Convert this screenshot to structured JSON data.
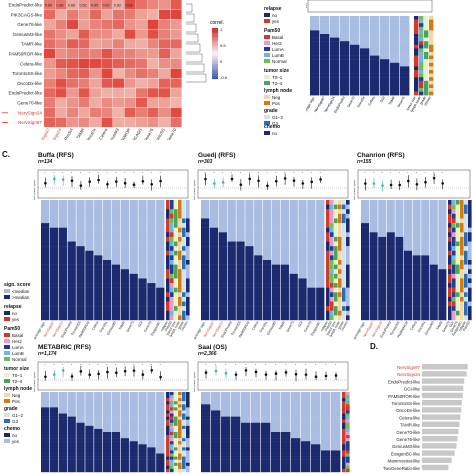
{
  "panel_letters": {
    "c": "C.",
    "d": "D."
  },
  "colors": {
    "navy": "#1b2a6e",
    "light_blue": "#7d98cc",
    "pale_blue": "#a9bde2",
    "red": "#cf3a2a",
    "teal": "#3fb6a8",
    "gray_bar": "#c8c8c8",
    "basal": "#d7352b",
    "her2": "#e89bc8",
    "luma": "#1f3c99",
    "lumb": "#6fb5e6",
    "normal": "#6bbf59",
    "t1": "#e7f2c9",
    "t2": "#4aa35b",
    "neg": "#f3d7a8",
    "pos": "#d17b12",
    "g12": "#cfe3f2",
    "g3": "#2a6fb4"
  },
  "heatmap_panel": {
    "rows": [
      "EndoPredict-like",
      "PIK3CAGS-like",
      "Gene76-like",
      "GeniusM3-like",
      "TAMR-like",
      "PAM50ROR-like",
      "Celera-like",
      "TorontoSS-like",
      "OncoDx-like",
      "EndoPredict-like",
      "Gene70-like",
      "NervSign24",
      "NervSign97"
    ],
    "cells_top": [
      "0.80",
      "0.80",
      "0.66",
      "0.63",
      "0.65",
      "0.63",
      "0.62",
      "0.63"
    ],
    "colorbar_title": "correl.",
    "colorbar_ticks": [
      "1",
      "0.5",
      "0",
      "-0.5"
    ],
    "column_labels": [
      "NervSign97",
      "NervSign24",
      "EndoPredict",
      "TAMR",
      "OncoDx",
      "Celera",
      "GeniusM3",
      "PAM50ROR",
      "PIK3CAGS",
      "Gene76",
      "TorontoSS",
      "Gene70"
    ]
  },
  "top_right": {
    "legend": {
      "relapse": {
        "title": "relapse",
        "items": [
          "no",
          "yes"
        ]
      },
      "pam50": {
        "title": "Pam50",
        "items": [
          "Basal",
          "Her2",
          "LumA",
          "LumB",
          "Normal"
        ]
      },
      "tumor_size": {
        "title": "tumor size",
        "items": [
          "T0–1",
          "T2–4"
        ]
      },
      "lymph_node": {
        "title": "lymph node",
        "items": [
          "Neg",
          "Pos"
        ]
      },
      "grade": {
        "title": "grade",
        "items": [
          "G1–2",
          "G3"
        ]
      },
      "chemo": {
        "title": "chemo",
        "items": [
          "no",
          "yes"
        ]
      }
    },
    "axis_label": "HR",
    "col_labels": [
      "average sign.",
      "NervSign97",
      "NervSign24",
      "EndoPredict",
      "Gene70",
      "OncoDx",
      "Celera",
      "GGI",
      "TAMR",
      "Gene76",
      "tumor size",
      "lymph node",
      "grade",
      "chemo"
    ]
  },
  "panels": [
    {
      "key": "buffa",
      "title": "Buffa (RFS)",
      "n": "n=134"
    },
    {
      "key": "guedj",
      "title": "Guedj (RFS)",
      "n": "n=303"
    },
    {
      "key": "chanrion",
      "title": "Chanrion (RFS)",
      "n": "n=155"
    },
    {
      "key": "metabric",
      "title": "METABRIC (RFS)",
      "n": "n=1,174"
    },
    {
      "key": "saal",
      "title": "Saal (OS)",
      "n": "n=2,366"
    }
  ],
  "hr_axis_label": "HR (med. split)",
  "c_col_labels": [
    "average sign.",
    "NervSign97",
    "NervSign24",
    "EndoPredict",
    "TorontoSS",
    "PAM50ROR",
    "Celera",
    "OncoDx",
    "GeniusM3",
    "TAMR",
    "Gene70",
    "GGI",
    "Gene76",
    "ExagenBC",
    "relapse",
    "Pam50",
    "tumor size",
    "lymph node",
    "grade",
    "chemo"
  ],
  "c_legend": {
    "sign_score": {
      "title": "sign. score",
      "items": [
        "<median",
        ">median"
      ]
    },
    "relapse": {
      "title": "relapse",
      "items": [
        "no",
        "yes"
      ]
    },
    "pam50": {
      "title": "Pam50",
      "items": [
        "Basal",
        "Her2",
        "LumA",
        "LumB",
        "Normal"
      ]
    },
    "tumor_size": {
      "title": "tumor size",
      "items": [
        "T0–1",
        "T2–4"
      ]
    },
    "lymph_node": {
      "title": "lymph node",
      "items": [
        "Neg",
        "Pos"
      ]
    },
    "grade": {
      "title": "grade",
      "items": [
        "G1–2",
        "G3"
      ]
    },
    "chemo": {
      "title": "chemo",
      "items": [
        "no",
        "yes"
      ]
    }
  },
  "panel_d": {
    "labels": [
      "NervSign97",
      "NervSign24",
      "EndoPredict-like",
      "GGI-like",
      "PAM50ROR-like",
      "TorontoSS-like",
      "OncoDx-like",
      "Celera-like",
      "TAMR-like",
      "Gene70-like",
      "Gene76-like",
      "GeniusM3-like",
      "ExagenBC-like",
      "Mammostrat-like",
      "TwoGeneRatio-like"
    ],
    "highlight": [
      "NervSign97",
      "NervSign24"
    ],
    "chart_data": {
      "type": "bar",
      "orientation": "horizontal",
      "categories": [
        "NervSign97",
        "NervSign24",
        "EndoPredict-like",
        "GGI-like",
        "PAM50ROR-like",
        "TorontoSS-like",
        "OncoDx-like",
        "Celera-like",
        "TAMR-like",
        "Gene70-like",
        "Gene76-like",
        "GeniusM3-like",
        "ExagenBC-like",
        "Mammostrat-like",
        "TwoGeneRatio-like"
      ],
      "values": [
        0.95,
        0.93,
        0.88,
        0.86,
        0.85,
        0.83,
        0.82,
        0.8,
        0.78,
        0.76,
        0.74,
        0.72,
        0.68,
        0.62,
        0.55
      ],
      "xlim": [
        0,
        1
      ]
    }
  }
}
